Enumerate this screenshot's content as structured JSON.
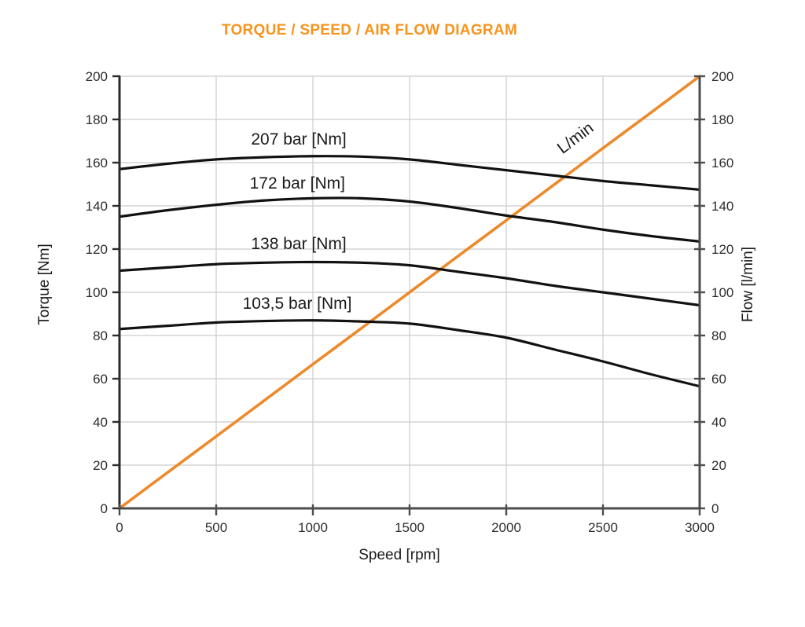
{
  "chart_data": {
    "type": "line",
    "title": "TORQUE / SPEED / AIR FLOW DIAGRAM",
    "xlabel": "Speed [rpm]",
    "ylabel_left": "Torque [Nm]",
    "ylabel_right": "Flow [l/min]",
    "xlim": [
      0,
      3000
    ],
    "ylim_left": [
      0,
      200
    ],
    "ylim_right": [
      0,
      200
    ],
    "x_ticks": [
      0,
      500,
      1000,
      1500,
      2000,
      2500,
      3000
    ],
    "y_ticks_left": [
      0,
      20,
      40,
      60,
      80,
      100,
      120,
      140,
      160,
      180,
      200
    ],
    "y_ticks_right": [
      0,
      20,
      40,
      60,
      80,
      100,
      120,
      140,
      160,
      180,
      200
    ],
    "grid": "on",
    "legend_position": "inline-curve-labels",
    "x": [
      0,
      250,
      500,
      750,
      1000,
      1250,
      1500,
      1750,
      2000,
      2250,
      2500,
      2750,
      3000
    ],
    "series": [
      {
        "name": "207 bar [Nm]",
        "axis": "left",
        "color": "#111111",
        "width": 3.2,
        "values": [
          157,
          159.5,
          161.5,
          162.5,
          163,
          162.8,
          161.5,
          159,
          156.5,
          154,
          151.5,
          149.5,
          147.5
        ]
      },
      {
        "name": "172 bar [Nm]",
        "axis": "left",
        "color": "#111111",
        "width": 3.2,
        "values": [
          135,
          138,
          140.5,
          142.5,
          143.5,
          143.5,
          142,
          139,
          135.5,
          132.5,
          129,
          126,
          123.5
        ]
      },
      {
        "name": "138 bar [Nm]",
        "axis": "left",
        "color": "#111111",
        "width": 3.2,
        "values": [
          110,
          111.5,
          113,
          113.7,
          114,
          113.7,
          112.5,
          109.5,
          106.5,
          103,
          100,
          97,
          94
        ]
      },
      {
        "name": "103,5 bar [Nm]",
        "axis": "left",
        "color": "#111111",
        "width": 3.2,
        "values": [
          83,
          84.5,
          86,
          86.7,
          87,
          86.5,
          85.5,
          82.5,
          79,
          73.5,
          68,
          62,
          56.5
        ]
      },
      {
        "name": "L/min",
        "axis": "right",
        "color": "#EC8A2C",
        "width": 3.6,
        "values": [
          0,
          16.7,
          33.3,
          50,
          66.7,
          83.3,
          100,
          116.7,
          133.3,
          150,
          166.7,
          183.3,
          200
        ]
      }
    ],
    "annotations": [
      {
        "text": "207 bar [Nm]",
        "x": 927,
        "y": 171,
        "rotation": 0
      },
      {
        "text": "172 bar [Nm]",
        "x": 920,
        "y": 150.5,
        "rotation": 0
      },
      {
        "text": "138 bar [Nm]",
        "x": 927,
        "y": 122.5,
        "rotation": 0
      },
      {
        "text": "103,5 bar [Nm]",
        "x": 919,
        "y": 95,
        "rotation": 0
      },
      {
        "text": "L/min",
        "x": 2374,
        "y": 172,
        "rotation": -37
      }
    ],
    "colors": {
      "title": "#F7941D",
      "flow_line": "#EC8A2C",
      "curves": "#111111",
      "grid": "#CCCCCC",
      "axis": "#4D4D4D",
      "left_axis": "#2B2B2B",
      "tick_labels": "#2E2E2E",
      "axis_labels": "#1A1A1A",
      "background": "#FFFFFF"
    }
  }
}
